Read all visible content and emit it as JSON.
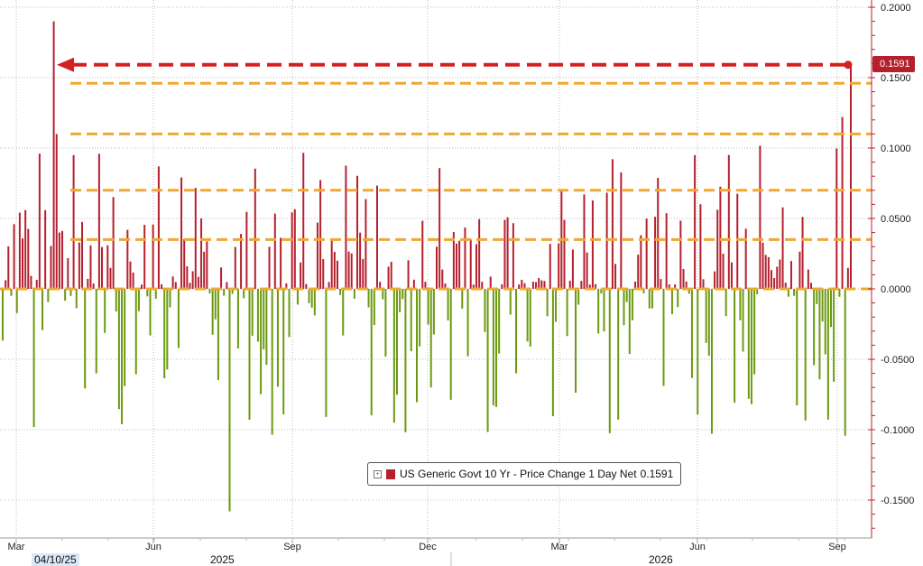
{
  "chart_data": {
    "type": "bar",
    "series": [
      {
        "name": "US Generic Govt 10 Yr - Price Change 1 Day Net",
        "last_value": "0.1591",
        "positive_color": "#b5202e",
        "negative_color": "#6b9a10"
      }
    ],
    "ylim": [
      -0.17,
      0.205
    ],
    "y_ticks": [
      "0.2000",
      "0.1500",
      "0.1000",
      "0.0500",
      "0.0000",
      "-0.0500",
      "-0.1000",
      "-0.1500"
    ],
    "y_tick_values": [
      0.2,
      0.15,
      0.1,
      0.05,
      0.0,
      -0.05,
      -0.1,
      -0.15
    ],
    "x_month_labels": [
      "Mar",
      "Jun",
      "Sep",
      "Dec",
      "Mar",
      "Jun",
      "Sep"
    ],
    "x_year_labels": [
      "2025",
      "2026"
    ],
    "highlighted_date": "04/10/25",
    "reference_levels": [
      0.146,
      0.11,
      0.07,
      0.035,
      0.0
    ],
    "annotation_level": 0.1591,
    "colors": {
      "grid": "#bdbdbd",
      "axis": "#b5202e",
      "reference": "#f0a830",
      "arrow": "#d42020"
    }
  }
}
